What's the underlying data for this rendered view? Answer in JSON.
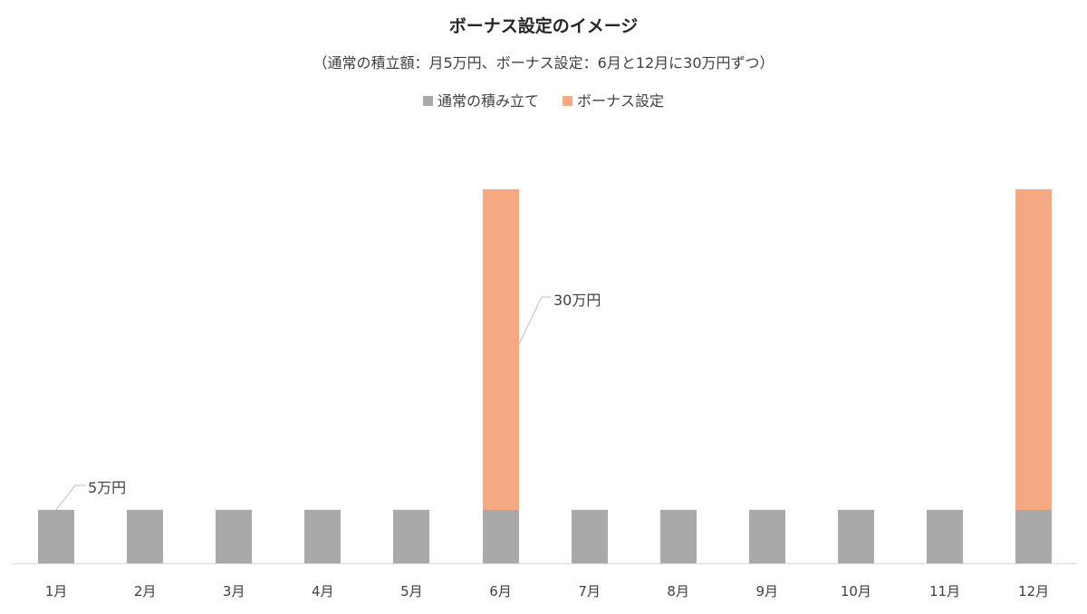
{
  "chart": {
    "title": "ボーナス設定のイメージ",
    "subtitle": "（通常の積立額：月5万円、ボーナス設定：6月と12月に30万円ずつ）",
    "legend": [
      {
        "label": "通常の積み立て",
        "color": "#a9a9a9"
      },
      {
        "label": "ボーナス設定",
        "color": "#f4a983"
      }
    ],
    "data_labels": {
      "regular": "5万円",
      "bonus": "30万円"
    }
  },
  "chart_data": {
    "type": "bar",
    "stacked": true,
    "title": "ボーナス設定のイメージ",
    "subtitle": "（通常の積立額：月5万円、ボーナス設定：6月と12月に30万円ずつ）",
    "categories": [
      "1月",
      "2月",
      "3月",
      "4月",
      "5月",
      "6月",
      "7月",
      "8月",
      "9月",
      "10月",
      "11月",
      "12月"
    ],
    "series": [
      {
        "name": "通常の積み立て",
        "color": "#a9a9a9",
        "values": [
          5,
          5,
          5,
          5,
          5,
          5,
          5,
          5,
          5,
          5,
          5,
          5
        ]
      },
      {
        "name": "ボーナス設定",
        "color": "#f4a983",
        "values": [
          0,
          0,
          0,
          0,
          0,
          30,
          0,
          0,
          0,
          0,
          0,
          30
        ]
      }
    ],
    "unit": "万円",
    "annotations": [
      {
        "text": "5万円",
        "category": "1月",
        "series": "通常の積み立て"
      },
      {
        "text": "30万円",
        "category": "6月",
        "series": "ボーナス設定"
      }
    ],
    "xlabel": "",
    "ylabel": "",
    "ylim": [
      0,
      35
    ],
    "grid": false,
    "y_axis_visible": false,
    "legend_position": "top"
  }
}
